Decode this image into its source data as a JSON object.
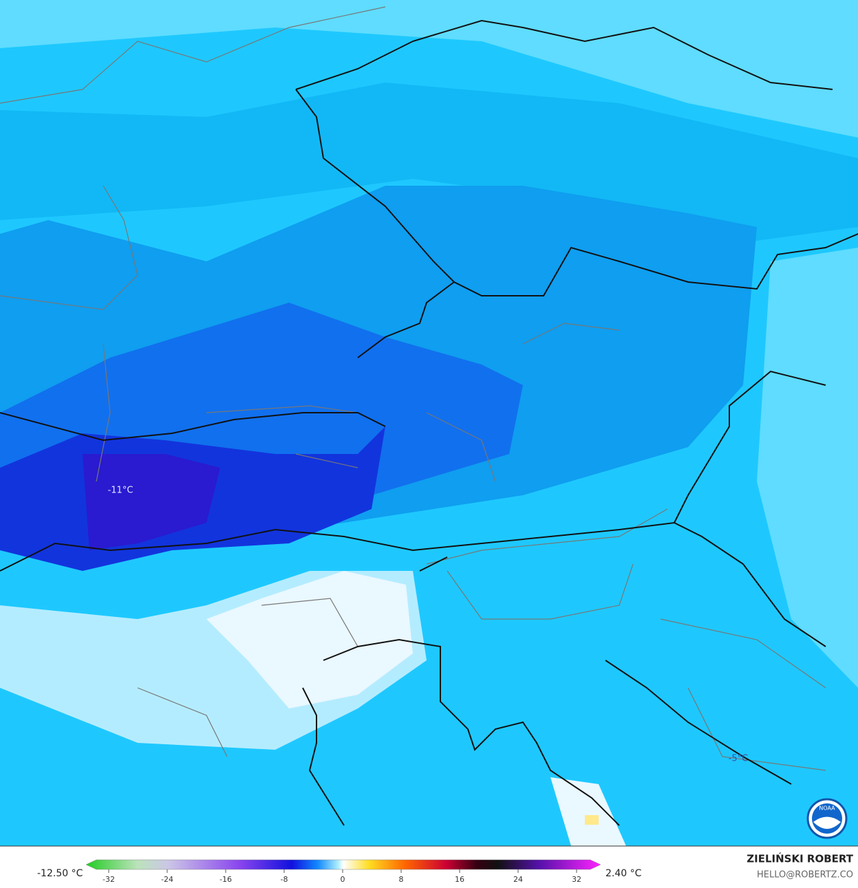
{
  "map": {
    "labels": [
      {
        "text": "-11°C"
      },
      {
        "text": "-5°C"
      }
    ]
  },
  "colorbar": {
    "min_label": "-12.50 °C",
    "max_label": "2.40 °C",
    "ticks": [
      -32,
      -24,
      -16,
      -8,
      0,
      8,
      16,
      24,
      32
    ]
  },
  "credit": {
    "author": "ZIELIŃSKI ROBERT",
    "contact": "HELLO@ROBERTZ.CO"
  },
  "logo": "NOAA"
}
